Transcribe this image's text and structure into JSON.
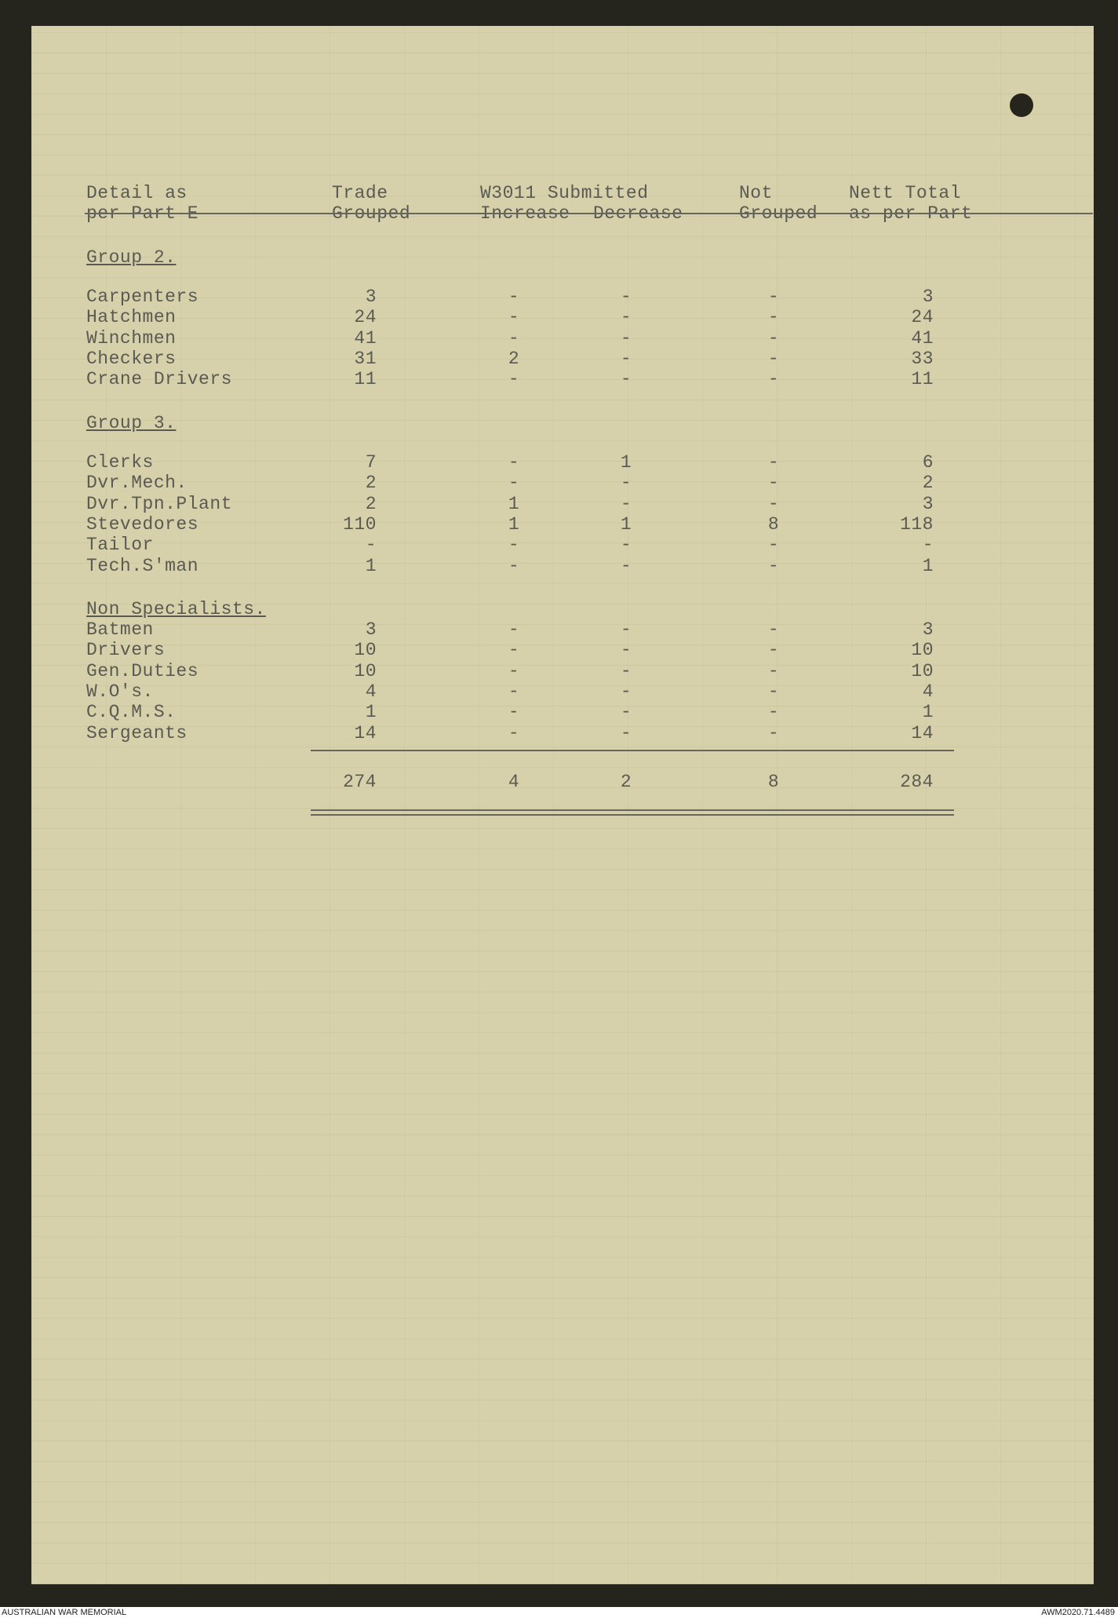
{
  "header": {
    "detail_line1": "Detail as",
    "detail_line2": "per Part E",
    "trade_line1": "Trade",
    "trade_line2": "Grouped",
    "w3011_line1": "W3011 Submitted",
    "increase": "Increase",
    "decrease": "Decrease",
    "not_line1": "Not",
    "not_line2": "Grouped",
    "nett_line1": "Nett Total",
    "nett_line2": "as per Part"
  },
  "groups": [
    {
      "title": "Group 2.",
      "rows": [
        {
          "label": "Carpenters",
          "trade": "3",
          "increase": "-",
          "decrease": "-",
          "not_grouped": "-",
          "nett": "3"
        },
        {
          "label": "Hatchmen",
          "trade": "24",
          "increase": "-",
          "decrease": "-",
          "not_grouped": "-",
          "nett": "24"
        },
        {
          "label": "Winchmen",
          "trade": "41",
          "increase": "-",
          "decrease": "-",
          "not_grouped": "-",
          "nett": "41"
        },
        {
          "label": "Checkers",
          "trade": "31",
          "increase": "2",
          "decrease": "-",
          "not_grouped": "-",
          "nett": "33"
        },
        {
          "label": "Crane Drivers",
          "trade": "11",
          "increase": "-",
          "decrease": "-",
          "not_grouped": "-",
          "nett": "11"
        }
      ]
    },
    {
      "title": "Group 3.",
      "rows": [
        {
          "label": "Clerks",
          "trade": "7",
          "increase": "-",
          "decrease": "1",
          "not_grouped": "-",
          "nett": "6"
        },
        {
          "label": "Dvr.Mech.",
          "trade": "2",
          "increase": "-",
          "decrease": "-",
          "not_grouped": "-",
          "nett": "2"
        },
        {
          "label": "Dvr.Tpn.Plant",
          "trade": "2",
          "increase": "1",
          "decrease": "-",
          "not_grouped": "-",
          "nett": "3"
        },
        {
          "label": "Stevedores",
          "trade": "110",
          "increase": "1",
          "decrease": "1",
          "not_grouped": "8",
          "nett": "118"
        },
        {
          "label": "Tailor",
          "trade": "-",
          "increase": "-",
          "decrease": "-",
          "not_grouped": "-",
          "nett": "-"
        },
        {
          "label": "Tech.S'man",
          "trade": "1",
          "increase": "-",
          "decrease": "-",
          "not_grouped": "-",
          "nett": "1"
        }
      ]
    },
    {
      "title": "Non Specialists.",
      "rows": [
        {
          "label": "Batmen",
          "trade": "3",
          "increase": "-",
          "decrease": "-",
          "not_grouped": "-",
          "nett": "3"
        },
        {
          "label": "Drivers",
          "trade": "10",
          "increase": "-",
          "decrease": "-",
          "not_grouped": "-",
          "nett": "10"
        },
        {
          "label": "Gen.Duties",
          "trade": "10",
          "increase": "-",
          "decrease": "-",
          "not_grouped": "-",
          "nett": "10"
        },
        {
          "label": "W.O's.",
          "trade": "4",
          "increase": "-",
          "decrease": "-",
          "not_grouped": "-",
          "nett": "4"
        },
        {
          "label": "C.Q.M.S.",
          "trade": "1",
          "increase": "-",
          "decrease": "-",
          "not_grouped": "-",
          "nett": "1"
        },
        {
          "label": "Sergeants",
          "trade": "14",
          "increase": "-",
          "decrease": "-",
          "not_grouped": "-",
          "nett": "14"
        }
      ]
    }
  ],
  "totals": {
    "trade": "274",
    "increase": "4",
    "decrease": "2",
    "not_grouped": "8",
    "nett": "284"
  },
  "footer": {
    "left": "AUSTRALIAN WAR MEMORIAL",
    "right": "AWM2020.71.4489"
  }
}
